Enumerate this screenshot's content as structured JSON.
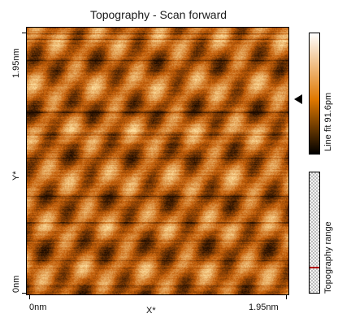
{
  "window": {
    "title": "Topography - Scan forward"
  },
  "axes": {
    "y_label": "Y*",
    "y_top": "1.95nm",
    "y_bottom": "0nm",
    "x_label": "X*",
    "x_left": "0nm",
    "x_right": "1.95nm"
  },
  "colorbar": {
    "label": "Line fit 91.6pm",
    "colors": {
      "top": "#ffffff",
      "mid": "#e07800",
      "bottom": "#000000"
    }
  },
  "range": {
    "label": "Topography range"
  },
  "image_colors": {
    "base": "#c45e08",
    "bright": "#ffe0a0",
    "dark": "#1a0a00"
  }
}
